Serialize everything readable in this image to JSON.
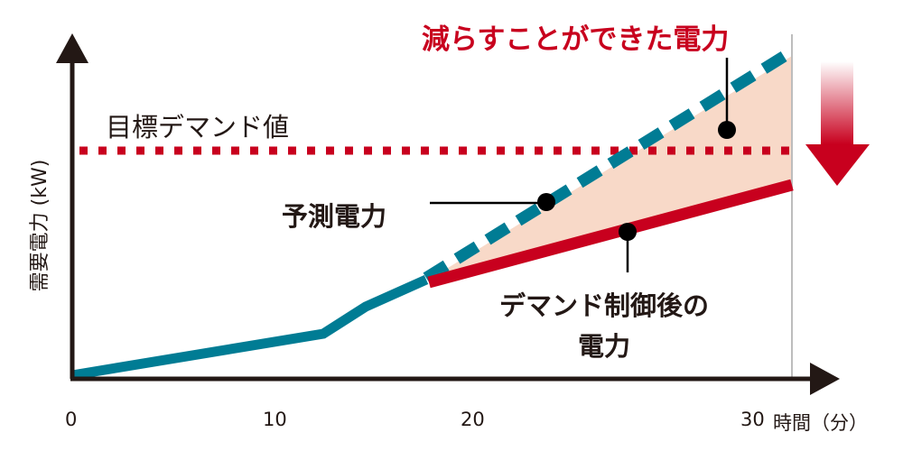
{
  "title": "減らすことができた電力",
  "labels": {
    "target_demand": "目標デマンド値",
    "forecast_power": "予測電力",
    "controlled_power_line1": "デマンド制御後の",
    "controlled_power_line2": "電力"
  },
  "axes": {
    "y_label": "需要電力 (kW)",
    "x_label": "時間（分）",
    "x_ticks": [
      "0",
      "10",
      "20",
      "30"
    ]
  },
  "colors": {
    "forecast": "#007c94",
    "controlled": "#c8001e",
    "target": "#c8001e",
    "reduced_area": "#f8d9c8",
    "axis": "#231815"
  }
}
